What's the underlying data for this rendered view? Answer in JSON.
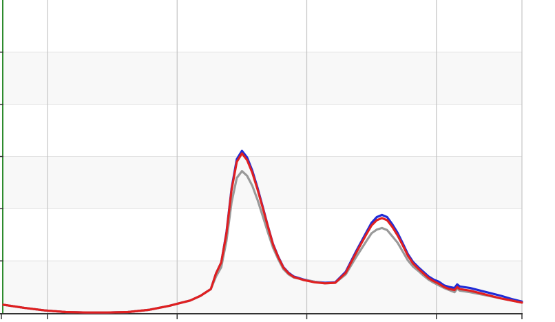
{
  "chart_data": {
    "type": "line",
    "title": "",
    "xlabel": "",
    "ylabel": "",
    "xlim": [
      0,
      100
    ],
    "ylim": [
      0,
      6
    ],
    "grid": true,
    "legend": "none",
    "x_gridlines": [
      8.5,
      33.5,
      58.5,
      83.5
    ],
    "y_gridlines": [
      1,
      2,
      3,
      4,
      5
    ],
    "x": [
      0,
      4,
      8,
      12,
      16,
      20,
      24,
      28,
      32,
      34,
      36,
      38,
      40,
      41,
      42,
      43,
      44,
      45,
      46,
      47,
      48,
      49,
      50,
      51,
      52,
      53,
      54,
      55,
      56,
      57,
      58,
      59,
      60,
      62,
      64,
      66,
      68,
      70,
      71,
      72,
      73,
      74,
      75,
      76,
      77,
      78,
      79,
      80,
      81,
      82,
      83,
      84,
      85,
      86,
      87,
      87.5,
      88,
      90,
      92,
      94,
      96,
      98,
      100
    ],
    "series": [
      {
        "color": "#1f2bd6",
        "values": [
          0.16,
          0.1,
          0.05,
          0.02,
          0.01,
          0.01,
          0.02,
          0.06,
          0.14,
          0.19,
          0.24,
          0.33,
          0.46,
          0.76,
          0.97,
          1.54,
          2.39,
          2.95,
          3.11,
          2.98,
          2.73,
          2.4,
          2.04,
          1.67,
          1.32,
          1.08,
          0.88,
          0.77,
          0.7,
          0.67,
          0.64,
          0.62,
          0.6,
          0.58,
          0.59,
          0.79,
          1.18,
          1.55,
          1.73,
          1.84,
          1.88,
          1.84,
          1.7,
          1.54,
          1.34,
          1.13,
          0.98,
          0.88,
          0.79,
          0.7,
          0.64,
          0.6,
          0.53,
          0.5,
          0.48,
          0.55,
          0.51,
          0.48,
          0.43,
          0.38,
          0.33,
          0.27,
          0.22
        ]
      },
      {
        "color": "#999999",
        "values": [
          0.16,
          0.1,
          0.05,
          0.02,
          0.01,
          0.01,
          0.02,
          0.06,
          0.14,
          0.19,
          0.24,
          0.33,
          0.46,
          0.7,
          0.88,
          1.38,
          2.12,
          2.59,
          2.72,
          2.63,
          2.44,
          2.17,
          1.86,
          1.55,
          1.25,
          1.03,
          0.84,
          0.74,
          0.68,
          0.66,
          0.63,
          0.62,
          0.6,
          0.57,
          0.58,
          0.74,
          1.07,
          1.38,
          1.53,
          1.6,
          1.63,
          1.59,
          1.47,
          1.35,
          1.18,
          1.01,
          0.89,
          0.81,
          0.72,
          0.64,
          0.58,
          0.53,
          0.48,
          0.44,
          0.4,
          0.47,
          0.43,
          0.4,
          0.36,
          0.32,
          0.28,
          0.24,
          0.2
        ]
      },
      {
        "color": "#e02020",
        "values": [
          0.16,
          0.1,
          0.05,
          0.02,
          0.01,
          0.01,
          0.02,
          0.06,
          0.14,
          0.19,
          0.24,
          0.33,
          0.46,
          0.76,
          0.97,
          1.52,
          2.36,
          2.9,
          3.06,
          2.93,
          2.69,
          2.37,
          2.02,
          1.66,
          1.31,
          1.07,
          0.87,
          0.76,
          0.69,
          0.66,
          0.63,
          0.61,
          0.59,
          0.57,
          0.58,
          0.77,
          1.15,
          1.51,
          1.68,
          1.78,
          1.82,
          1.78,
          1.65,
          1.49,
          1.3,
          1.1,
          0.95,
          0.85,
          0.76,
          0.67,
          0.61,
          0.56,
          0.5,
          0.46,
          0.44,
          0.5,
          0.46,
          0.43,
          0.38,
          0.33,
          0.28,
          0.24,
          0.2
        ]
      }
    ]
  }
}
